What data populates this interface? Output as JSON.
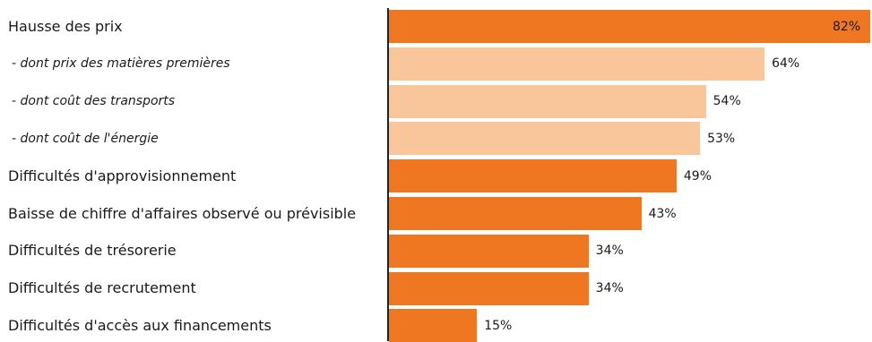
{
  "colors": {
    "main": "#F07722",
    "sub": "#F9C59A",
    "axis": "#222222"
  },
  "chart_data": {
    "type": "bar",
    "orientation": "horizontal",
    "xlim": [
      0,
      82
    ],
    "items": [
      {
        "label": "Hausse des prix",
        "value": 82,
        "value_label": "82%",
        "level": "main"
      },
      {
        "label": "- dont prix des matières premières",
        "value": 64,
        "value_label": "64%",
        "level": "sub"
      },
      {
        "label": "- dont coût des transports",
        "value": 54,
        "value_label": "54%",
        "level": "sub"
      },
      {
        "label": "- dont coût de l'énergie",
        "value": 53,
        "value_label": "53%",
        "level": "sub"
      },
      {
        "label": "Difficultés d'approvisionnement",
        "value": 49,
        "value_label": "49%",
        "level": "main"
      },
      {
        "label": "Baisse de chiffre d'affaires observé ou prévisible",
        "value": 43,
        "value_label": "43%",
        "level": "main"
      },
      {
        "label": "Difficultés de trésorerie",
        "value": 34,
        "value_label": "34%",
        "level": "main"
      },
      {
        "label": "Difficultés de recrutement",
        "value": 34,
        "value_label": "34%",
        "level": "main"
      },
      {
        "label": "Difficultés d'accès aux financements",
        "value": 15,
        "value_label": "15%",
        "level": "main"
      }
    ]
  }
}
